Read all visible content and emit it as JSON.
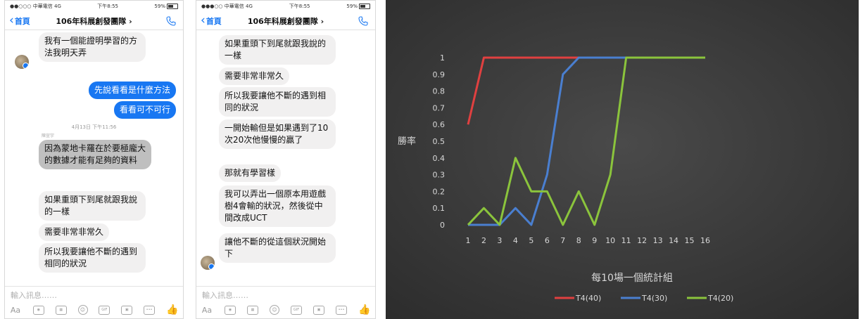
{
  "phone1": {
    "status": {
      "carrier": "●●○○○ 中華電信 4G",
      "time": "下午8:55",
      "battery": "59%"
    },
    "nav": {
      "back": "首頁",
      "title": "106年科展創發團隊 ›"
    },
    "messages": [
      {
        "meta": "",
        "text": "我有一個能證明學習的方法我明天弄",
        "from": "in",
        "avatar": true
      },
      {
        "meta": "",
        "text": "先說看看是什麼方法",
        "from": "out"
      },
      {
        "meta": "",
        "text": "看看可不可行",
        "from": "out"
      },
      {
        "meta": "陳宣宇",
        "text": "因為蒙地卡羅在於要極龐大的數據才能有足夠的資料",
        "from": "in",
        "selected": true
      },
      {
        "meta": "",
        "text": "如果重頭下到尾就跟我說的一樣",
        "from": "in"
      },
      {
        "meta": "",
        "text": "需要非常非常久",
        "from": "in"
      },
      {
        "meta": "",
        "text": "所以我要讓他不斷的遇到相同的狀況",
        "from": "in"
      }
    ],
    "timestamp": "4月13日 下午11:56",
    "input_placeholder": "輸入訊息……"
  },
  "phone2": {
    "status": {
      "carrier": "●●●○○ 中華電信 4G",
      "time": "下午8:55",
      "battery": "59%"
    },
    "nav": {
      "back": "首頁",
      "title": "106年科展創發團隊 ›"
    },
    "messages": [
      {
        "text": "如果重頭下到尾就跟我說的一樣"
      },
      {
        "text": "需要非常非常久"
      },
      {
        "text": "所以我要讓他不斷的遇到相同的狀況"
      },
      {
        "text": "一開始輸但是如果遇到了10次20次他慢慢的贏了"
      },
      {
        "text": "那就有學習樣"
      },
      {
        "text": "我可以弄出一個原本用遊戲樹4會輸的狀況，然後從中間改成UCT"
      },
      {
        "text": "讓他不斷的從這個狀況開始下",
        "avatar": true
      }
    ],
    "input_placeholder": "輸入訊息……"
  },
  "toolbar": {
    "aa": "Aa",
    "gif": "GIF"
  },
  "chart_data": {
    "type": "line",
    "title": "",
    "xlabel": "每10場一個統計組",
    "ylabel": "勝率",
    "x": [
      1,
      2,
      3,
      4,
      5,
      6,
      7,
      8,
      9,
      10,
      11,
      12,
      13,
      14,
      15,
      16
    ],
    "ylim": [
      0,
      1
    ],
    "yticks": [
      "0",
      "0.1",
      "0.2",
      "0.3",
      "0.4",
      "0.5",
      "0.6",
      "0.7",
      "0.8",
      "0.9",
      "1"
    ],
    "legend_position": "bottom",
    "grid": false,
    "background": "#3c3c3c",
    "series": [
      {
        "name": "T4(40)",
        "color": "#e04040",
        "values": [
          0.6,
          1,
          1,
          1,
          1,
          1,
          1,
          1,
          1,
          1,
          1,
          1,
          1,
          1,
          1,
          1
        ]
      },
      {
        "name": "T4(30)",
        "color": "#4a7fd0",
        "values": [
          0,
          0,
          0,
          0.1,
          0,
          0.3,
          0.9,
          1,
          1,
          1,
          1,
          1,
          1,
          1,
          1,
          1
        ]
      },
      {
        "name": "T4(20)",
        "color": "#8bc43c",
        "values": [
          0,
          0.1,
          0,
          0.4,
          0.2,
          0.2,
          0,
          0.2,
          0,
          0.3,
          1,
          1,
          1,
          1,
          1,
          1
        ]
      }
    ]
  }
}
